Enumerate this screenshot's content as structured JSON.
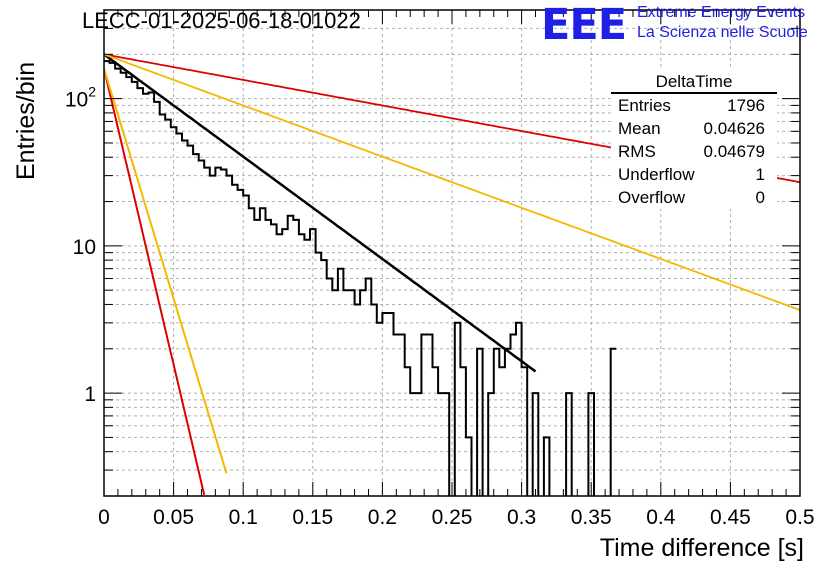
{
  "title": "LECC-01-2025-06-18-01022",
  "logo": {
    "text": "EEE",
    "line1": "Extreme Energy Events",
    "line2": "La Scienza nelle Scuole",
    "color": "#1f1fe6"
  },
  "stats": {
    "title": "DeltaTime",
    "rows": [
      {
        "label": "Entries",
        "value": "1796"
      },
      {
        "label": "Mean",
        "value": "0.04626"
      },
      {
        "label": "RMS",
        "value": "0.04679"
      },
      {
        "label": "Underflow",
        "value": "1"
      },
      {
        "label": "Overflow",
        "value": "0"
      }
    ]
  },
  "chart_data": {
    "type": "line",
    "xlabel": "Time difference [s]",
    "ylabel": "Entries/bin",
    "xlim": [
      0,
      0.5
    ],
    "ylim": [
      0.2,
      400
    ],
    "yscale": "log",
    "grid": true,
    "x_ticks": [
      "0",
      "0.05",
      "0.1",
      "0.15",
      "0.2",
      "0.25",
      "0.3",
      "0.35",
      "0.4",
      "0.45",
      "0.5"
    ],
    "y_ticks": [
      {
        "value": 1,
        "base": "1",
        "exp": ""
      },
      {
        "value": 10,
        "base": "10",
        "exp": ""
      },
      {
        "value": 100,
        "base": "10",
        "exp": "2"
      }
    ],
    "histogram": {
      "bin_width": 0.004,
      "values": [
        180,
        175,
        160,
        150,
        140,
        130,
        118,
        108,
        110,
        95,
        78,
        72,
        64,
        58,
        52,
        48,
        42,
        38,
        34,
        30,
        34,
        33,
        30,
        26,
        24,
        22,
        18,
        15,
        18,
        15,
        14,
        12,
        13,
        16,
        15,
        12,
        11,
        13,
        9,
        8,
        6,
        5,
        7,
        5,
        5,
        4,
        5,
        6,
        4,
        3,
        3.5,
        3.5,
        2.5,
        2.5,
        1.5,
        1,
        1,
        2.5,
        2.5,
        1.5,
        1,
        1,
        0,
        3,
        1.5,
        0.5,
        0,
        2,
        0,
        1,
        2,
        1.5,
        2,
        2.5,
        3,
        1.5,
        0,
        1,
        0,
        0.5,
        0,
        0,
        0,
        1,
        0,
        0,
        0,
        1,
        0,
        0,
        0,
        2
      ],
      "color": "#000000"
    },
    "series": [
      {
        "type": "exp",
        "a": 200,
        "tau": 0.0625,
        "x_end": 0.31,
        "color": "#000000",
        "width": 2.5
      },
      {
        "type": "exp",
        "a": 200,
        "tau": 0.25,
        "x_end": 0.5,
        "color": "#dd0000",
        "width": 1.8
      },
      {
        "type": "exp",
        "a": 200,
        "tau": 0.125,
        "x_end": 0.5,
        "color": "#f5b800",
        "width": 1.8
      },
      {
        "type": "exp",
        "a": 160,
        "tau": 0.0108,
        "x_end": 0.072,
        "color": "#dd0000",
        "width": 2
      },
      {
        "type": "exp",
        "a": 160,
        "tau": 0.0139,
        "x_end": 0.088,
        "color": "#f5b800",
        "width": 2
      }
    ]
  }
}
